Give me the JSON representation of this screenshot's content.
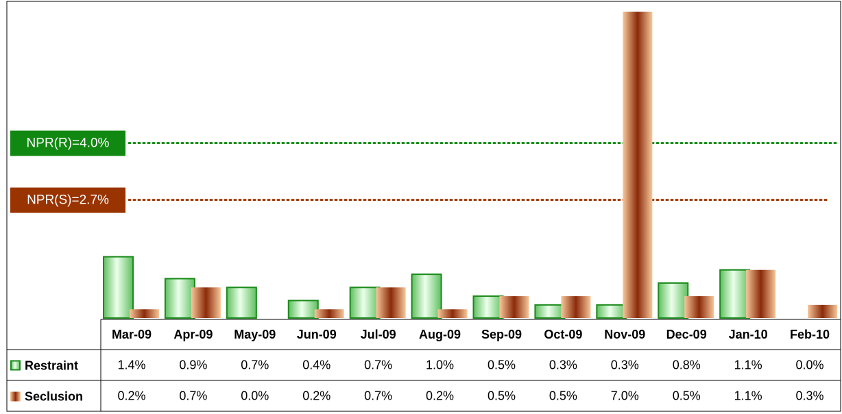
{
  "chart_data": {
    "type": "bar",
    "categories": [
      "Mar-09",
      "Apr-09",
      "May-09",
      "Jun-09",
      "Jul-09",
      "Aug-09",
      "Sep-09",
      "Oct-09",
      "Nov-09",
      "Dec-09",
      "Jan-10",
      "Feb-10"
    ],
    "series": [
      {
        "name": "Restraint",
        "color": "#1a8a1a",
        "values": [
          1.4,
          0.9,
          0.7,
          0.4,
          0.7,
          1.0,
          0.5,
          0.3,
          0.3,
          0.8,
          1.1,
          0.0
        ],
        "value_labels": [
          "1.4%",
          "0.9%",
          "0.7%",
          "0.4%",
          "0.7%",
          "1.0%",
          "0.5%",
          "0.3%",
          "0.3%",
          "0.8%",
          "1.1%",
          "0.0%"
        ]
      },
      {
        "name": "Seclusion",
        "color": "#993300",
        "values": [
          0.2,
          0.7,
          0.0,
          0.2,
          0.7,
          0.2,
          0.5,
          0.5,
          7.0,
          0.5,
          1.1,
          0.3
        ],
        "value_labels": [
          "0.2%",
          "0.7%",
          "0.0%",
          "0.2%",
          "0.7%",
          "0.2%",
          "0.5%",
          "0.5%",
          "7.0%",
          "0.5%",
          "1.1%",
          "0.3%"
        ]
      }
    ],
    "ylim": [
      0,
      7
    ],
    "reference_lines": [
      {
        "label": "NPR(R)=4.0%",
        "value": 4.0,
        "color": "#118811"
      },
      {
        "label": "NPR(S)=2.7%",
        "value": 2.7,
        "color": "#993300"
      }
    ]
  }
}
